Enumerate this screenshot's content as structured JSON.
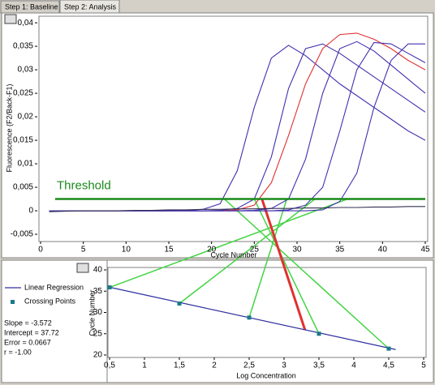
{
  "tabs": [
    "Step 1: Baseline",
    "Step 2: Analysis"
  ],
  "chart_data": [
    {
      "type": "line",
      "ylabel": "Fluorescence (F2/Back-F1)",
      "xlabel": "Cycle Number",
      "x": [
        1,
        3,
        5,
        7,
        9,
        11,
        13,
        15,
        17,
        19,
        21,
        23,
        25,
        27,
        29,
        31,
        33,
        35,
        37,
        39,
        41,
        43,
        45
      ],
      "series": [
        {
          "color": "#4030b0",
          "values": [
            0,
            0,
            0,
            0,
            0,
            0,
            0,
            0,
            0.0001,
            0.0003,
            0.0015,
            0.0085,
            0.022,
            0.0325,
            0.0352,
            0.033,
            0.03,
            0.027,
            0.0245,
            0.022,
            0.0195,
            0.017,
            0.015
          ]
        },
        {
          "color": "#4030b0",
          "values": [
            0,
            0,
            0,
            0,
            0,
            0,
            0,
            0,
            0,
            0,
            0.0001,
            0.0005,
            0.0025,
            0.0115,
            0.026,
            0.0345,
            0.0355,
            0.0335,
            0.031,
            0.0285,
            0.026,
            0.0235,
            0.021
          ]
        },
        {
          "color": "#e03030",
          "values": [
            0,
            0,
            0,
            0,
            0,
            0,
            0,
            0,
            0,
            0,
            0,
            0.0002,
            0.0012,
            0.006,
            0.016,
            0.027,
            0.0345,
            0.0375,
            0.0378,
            0.0365,
            0.0345,
            0.032,
            0.03
          ]
        },
        {
          "color": "#4030b0",
          "values": [
            0,
            0,
            0,
            0,
            0,
            0,
            0,
            0,
            0,
            0,
            0,
            0,
            0.0001,
            0.0005,
            0.0025,
            0.011,
            0.025,
            0.0345,
            0.036,
            0.034,
            0.031,
            0.028,
            0.025
          ]
        },
        {
          "color": "#4030b0",
          "values": [
            0,
            0,
            0,
            0,
            0,
            0,
            0,
            0,
            0,
            0,
            0,
            0,
            0,
            0,
            0.0002,
            0.0012,
            0.005,
            0.017,
            0.03,
            0.0358,
            0.0355,
            0.0335,
            0.0315
          ]
        },
        {
          "color": "#4030b0",
          "values": [
            0,
            0,
            0,
            0,
            0,
            0,
            0,
            0,
            0,
            0,
            0,
            0,
            0,
            0,
            0,
            0,
            0.0002,
            0.002,
            0.008,
            0.022,
            0.032,
            0.0355,
            0.0355
          ]
        },
        {
          "color": "#303050",
          "values": [
            -0.0002,
            -0.0001,
            0,
            0,
            0,
            0.0001,
            0.0001,
            0.0002,
            0.0002,
            0.0003,
            0.0003,
            0.0004,
            0.0004,
            0.0005,
            0.0005,
            0.0006,
            0.0006,
            0.0007,
            0.0007,
            0.0008,
            0.0008,
            0.0009,
            0.0009
          ]
        }
      ],
      "threshold": {
        "label": "Threshold",
        "value": 0.0025,
        "color": "#1a8a1a"
      },
      "xlim": [
        0,
        45
      ],
      "ylim": [
        -0.0062,
        0.0414
      ],
      "xticks": [
        0,
        5,
        10,
        15,
        20,
        25,
        30,
        35,
        40,
        45
      ],
      "yticks": [
        {
          "value": -0.005,
          "label": "-0,005"
        },
        0,
        {
          "value": 0.005,
          "label": "0,005"
        },
        {
          "value": 0.01,
          "label": "0,01"
        },
        {
          "value": 0.015,
          "label": "0,015"
        },
        {
          "value": 0.02,
          "label": "0,02"
        },
        {
          "value": 0.025,
          "label": "0,025"
        },
        {
          "value": 0.03,
          "label": "0,03"
        },
        {
          "value": 0.035,
          "label": "0,035"
        },
        {
          "value": 0.04,
          "label": "0,04"
        }
      ]
    },
    {
      "type": "scatter",
      "ylabel": "Cycle Number",
      "xlabel": "Log Concentration",
      "series": [
        {
          "name": "Linear Regression",
          "color": "#3030a0",
          "x": [
            0.5,
            4.6
          ],
          "values": [
            35.93,
            21.29
          ]
        },
        {
          "name": "Crossing Points",
          "color": "#1a7a8a",
          "x": [
            0.5,
            1.5,
            2.5,
            3.5,
            4.5
          ],
          "values": [
            35.9,
            32.1,
            28.8,
            25.0,
            21.5
          ]
        }
      ],
      "unknown": {
        "color": "#e03030",
        "x": 3.3,
        "value": 25.9
      },
      "connector_color": "#44d444",
      "stats": [
        "Slope = -3.572",
        "Intercept = 37.72",
        "Error = 0.0667",
        "r = -1.00"
      ],
      "xlim": [
        0.5,
        5
      ],
      "ylim": [
        20,
        40
      ],
      "xticks": [
        {
          "value": 0.5,
          "label": "0,5"
        },
        1,
        {
          "value": 1.5,
          "label": "1,5"
        },
        2,
        {
          "value": 2.5,
          "label": "2,5"
        },
        3,
        {
          "value": 3.5,
          "label": "3,5"
        },
        4,
        {
          "value": 4.5,
          "label": "4,5"
        },
        5
      ],
      "yticks": [
        20,
        25,
        30,
        35,
        40
      ]
    }
  ]
}
